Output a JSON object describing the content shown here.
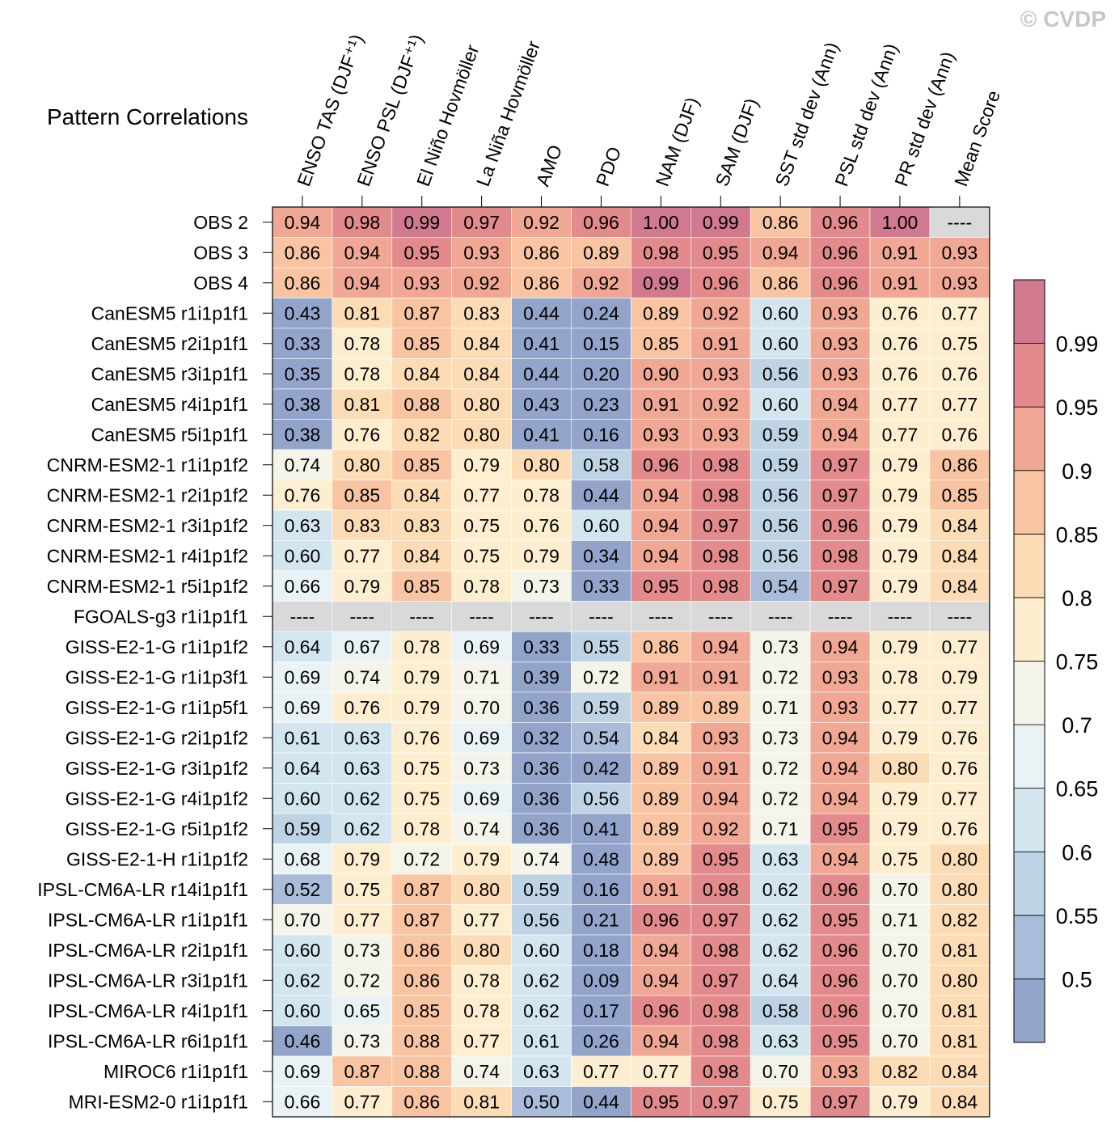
{
  "chart_data": {
    "type": "heatmap",
    "title": "Pattern Correlations",
    "copyright": "© CVDP",
    "missing_label": "----",
    "columns": [
      "ENSO TAS (DJF⁺¹)",
      "ENSO PSL (DJF⁺¹)",
      "El Niño Hovmöller",
      "La Niña Hovmöller",
      "AMO",
      "PDO",
      "NAM (DJF)",
      "SAM (DJF)",
      "SST std dev (Ann)",
      "PSL std dev (Ann)",
      "PR std dev (Ann)",
      "Mean Score"
    ],
    "rows": [
      {
        "name": "OBS 2",
        "values": [
          0.94,
          0.98,
          0.99,
          0.97,
          0.92,
          0.96,
          1.0,
          0.99,
          0.86,
          0.96,
          1.0,
          null
        ]
      },
      {
        "name": "OBS 3",
        "values": [
          0.86,
          0.94,
          0.95,
          0.93,
          0.86,
          0.89,
          0.98,
          0.95,
          0.94,
          0.96,
          0.91,
          0.93
        ]
      },
      {
        "name": "OBS 4",
        "values": [
          0.86,
          0.94,
          0.93,
          0.92,
          0.86,
          0.92,
          0.99,
          0.96,
          0.86,
          0.96,
          0.91,
          0.93
        ]
      },
      {
        "name": "CanESM5 r1i1p1f1",
        "values": [
          0.43,
          0.81,
          0.87,
          0.83,
          0.44,
          0.24,
          0.89,
          0.92,
          0.6,
          0.93,
          0.76,
          0.77
        ]
      },
      {
        "name": "CanESM5 r2i1p1f1",
        "values": [
          0.33,
          0.78,
          0.85,
          0.84,
          0.41,
          0.15,
          0.85,
          0.91,
          0.6,
          0.93,
          0.76,
          0.75
        ]
      },
      {
        "name": "CanESM5 r3i1p1f1",
        "values": [
          0.35,
          0.78,
          0.84,
          0.84,
          0.44,
          0.2,
          0.9,
          0.93,
          0.56,
          0.93,
          0.76,
          0.76
        ]
      },
      {
        "name": "CanESM5 r4i1p1f1",
        "values": [
          0.38,
          0.81,
          0.88,
          0.8,
          0.43,
          0.23,
          0.91,
          0.92,
          0.6,
          0.94,
          0.77,
          0.77
        ]
      },
      {
        "name": "CanESM5 r5i1p1f1",
        "values": [
          0.38,
          0.76,
          0.82,
          0.8,
          0.41,
          0.16,
          0.93,
          0.93,
          0.59,
          0.94,
          0.77,
          0.76
        ]
      },
      {
        "name": "CNRM-ESM2-1 r1i1p1f2",
        "values": [
          0.74,
          0.8,
          0.85,
          0.79,
          0.8,
          0.58,
          0.96,
          0.98,
          0.59,
          0.97,
          0.79,
          0.86
        ]
      },
      {
        "name": "CNRM-ESM2-1 r2i1p1f2",
        "values": [
          0.76,
          0.85,
          0.84,
          0.77,
          0.78,
          0.44,
          0.94,
          0.98,
          0.56,
          0.97,
          0.79,
          0.85
        ]
      },
      {
        "name": "CNRM-ESM2-1 r3i1p1f2",
        "values": [
          0.63,
          0.83,
          0.83,
          0.75,
          0.76,
          0.6,
          0.94,
          0.97,
          0.56,
          0.96,
          0.79,
          0.84
        ]
      },
      {
        "name": "CNRM-ESM2-1 r4i1p1f2",
        "values": [
          0.6,
          0.77,
          0.84,
          0.75,
          0.79,
          0.34,
          0.94,
          0.98,
          0.56,
          0.98,
          0.79,
          0.84
        ]
      },
      {
        "name": "CNRM-ESM2-1 r5i1p1f2",
        "values": [
          0.66,
          0.79,
          0.85,
          0.78,
          0.73,
          0.33,
          0.95,
          0.98,
          0.54,
          0.97,
          0.79,
          0.84
        ]
      },
      {
        "name": "FGOALS-g3 r1i1p1f1",
        "values": [
          null,
          null,
          null,
          null,
          null,
          null,
          null,
          null,
          null,
          null,
          null,
          null
        ]
      },
      {
        "name": "GISS-E2-1-G r1i1p1f2",
        "values": [
          0.64,
          0.67,
          0.78,
          0.69,
          0.33,
          0.55,
          0.86,
          0.94,
          0.73,
          0.94,
          0.79,
          0.77
        ]
      },
      {
        "name": "GISS-E2-1-G r1i1p3f1",
        "values": [
          0.69,
          0.74,
          0.79,
          0.71,
          0.39,
          0.72,
          0.91,
          0.91,
          0.72,
          0.93,
          0.78,
          0.79
        ]
      },
      {
        "name": "GISS-E2-1-G r1i1p5f1",
        "values": [
          0.69,
          0.76,
          0.79,
          0.7,
          0.36,
          0.59,
          0.89,
          0.89,
          0.71,
          0.93,
          0.77,
          0.77
        ]
      },
      {
        "name": "GISS-E2-1-G r2i1p1f2",
        "values": [
          0.61,
          0.63,
          0.76,
          0.69,
          0.32,
          0.54,
          0.84,
          0.93,
          0.73,
          0.94,
          0.79,
          0.76
        ]
      },
      {
        "name": "GISS-E2-1-G r3i1p1f2",
        "values": [
          0.64,
          0.63,
          0.75,
          0.73,
          0.36,
          0.42,
          0.89,
          0.91,
          0.72,
          0.94,
          0.8,
          0.76
        ]
      },
      {
        "name": "GISS-E2-1-G r4i1p1f2",
        "values": [
          0.6,
          0.62,
          0.75,
          0.69,
          0.36,
          0.56,
          0.89,
          0.94,
          0.72,
          0.94,
          0.79,
          0.77
        ]
      },
      {
        "name": "GISS-E2-1-G r5i1p1f2",
        "values": [
          0.59,
          0.62,
          0.78,
          0.74,
          0.36,
          0.41,
          0.89,
          0.92,
          0.71,
          0.95,
          0.79,
          0.76
        ]
      },
      {
        "name": "GISS-E2-1-H r1i1p1f2",
        "values": [
          0.68,
          0.79,
          0.72,
          0.79,
          0.74,
          0.48,
          0.89,
          0.95,
          0.63,
          0.94,
          0.75,
          0.8
        ]
      },
      {
        "name": "IPSL-CM6A-LR r14i1p1f1",
        "values": [
          0.52,
          0.75,
          0.87,
          0.8,
          0.59,
          0.16,
          0.91,
          0.98,
          0.62,
          0.96,
          0.7,
          0.8
        ]
      },
      {
        "name": "IPSL-CM6A-LR r1i1p1f1",
        "values": [
          0.7,
          0.77,
          0.87,
          0.77,
          0.56,
          0.21,
          0.96,
          0.97,
          0.62,
          0.95,
          0.71,
          0.82
        ]
      },
      {
        "name": "IPSL-CM6A-LR r2i1p1f1",
        "values": [
          0.6,
          0.73,
          0.86,
          0.8,
          0.6,
          0.18,
          0.94,
          0.98,
          0.62,
          0.96,
          0.7,
          0.81
        ]
      },
      {
        "name": "IPSL-CM6A-LR r3i1p1f1",
        "values": [
          0.62,
          0.72,
          0.86,
          0.78,
          0.62,
          0.09,
          0.94,
          0.97,
          0.64,
          0.96,
          0.7,
          0.8
        ]
      },
      {
        "name": "IPSL-CM6A-LR r4i1p1f1",
        "values": [
          0.6,
          0.65,
          0.85,
          0.78,
          0.62,
          0.17,
          0.96,
          0.98,
          0.58,
          0.96,
          0.7,
          0.81
        ]
      },
      {
        "name": "IPSL-CM6A-LR r6i1p1f1",
        "values": [
          0.46,
          0.73,
          0.88,
          0.77,
          0.61,
          0.26,
          0.94,
          0.98,
          0.63,
          0.95,
          0.7,
          0.81
        ]
      },
      {
        "name": "MIROC6 r1i1p1f1",
        "values": [
          0.69,
          0.87,
          0.88,
          0.74,
          0.63,
          0.77,
          0.77,
          0.98,
          0.7,
          0.93,
          0.82,
          0.84
        ]
      },
      {
        "name": "MRI-ESM2-0 r1i1p1f1",
        "values": [
          0.66,
          0.77,
          0.86,
          0.81,
          0.5,
          0.44,
          0.95,
          0.97,
          0.75,
          0.97,
          0.79,
          0.84
        ]
      }
    ],
    "colorbar": {
      "levels": [
        0.5,
        0.55,
        0.6,
        0.65,
        0.7,
        0.75,
        0.8,
        0.85,
        0.9,
        0.95,
        0.99
      ],
      "labels": [
        "0.5",
        "0.55",
        "0.6",
        "0.65",
        "0.7",
        "0.75",
        "0.8",
        "0.85",
        "0.9",
        "0.95",
        "0.99"
      ],
      "colors": [
        "#93a4cb",
        "#a9bcd9",
        "#bed4e5",
        "#d3e6ef",
        "#e9f3f5",
        "#f4f4ea",
        "#fdeed0",
        "#fcdcb5",
        "#f8c4a2",
        "#f0a894",
        "#e38a8c",
        "#d17a8f"
      ],
      "missing_color": "#d9d9d9"
    }
  }
}
